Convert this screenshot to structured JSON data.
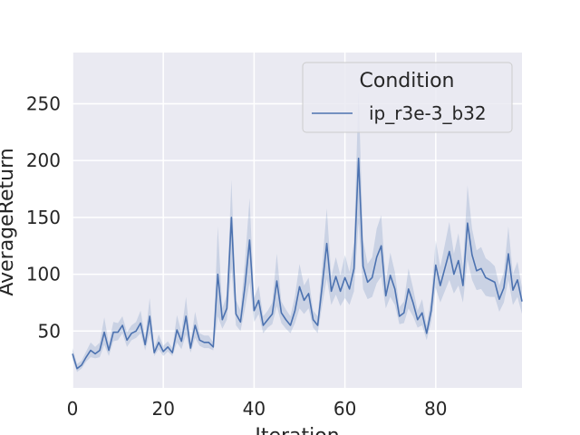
{
  "chart_data": {
    "type": "line",
    "xlabel": "Iteration",
    "ylabel": "AverageReturn",
    "xlim": [
      0,
      99
    ],
    "ylim": [
      0,
      295
    ],
    "xticks": [
      0,
      20,
      40,
      60,
      80
    ],
    "yticks": [
      50,
      100,
      150,
      200,
      250
    ],
    "grid": true,
    "legend": {
      "title": "Condition",
      "placement": "top-right"
    },
    "series": [
      {
        "name": "ip_r3e-3_b32",
        "color": "#4c72b0",
        "x": [
          0,
          1,
          2,
          3,
          4,
          5,
          6,
          7,
          8,
          9,
          10,
          11,
          12,
          13,
          14,
          15,
          16,
          17,
          18,
          19,
          20,
          21,
          22,
          23,
          24,
          25,
          26,
          27,
          28,
          29,
          30,
          31,
          32,
          33,
          34,
          35,
          36,
          37,
          38,
          39,
          40,
          41,
          42,
          43,
          44,
          45,
          46,
          47,
          48,
          49,
          50,
          51,
          52,
          53,
          54,
          55,
          56,
          57,
          58,
          59,
          60,
          61,
          62,
          63,
          64,
          65,
          66,
          67,
          68,
          69,
          70,
          71,
          72,
          73,
          74,
          75,
          76,
          77,
          78,
          79,
          80,
          81,
          82,
          83,
          84,
          85,
          86,
          87,
          88,
          89,
          90,
          91,
          92,
          93,
          94,
          95,
          96,
          97,
          98,
          99
        ],
        "y": [
          30,
          17,
          20,
          27,
          33,
          30,
          33,
          49,
          33,
          49,
          49,
          55,
          42,
          48,
          50,
          57,
          38,
          63,
          31,
          40,
          32,
          36,
          31,
          51,
          41,
          63,
          35,
          55,
          42,
          40,
          40,
          36,
          100,
          60,
          70,
          150,
          65,
          58,
          90,
          130,
          68,
          77,
          55,
          60,
          65,
          94,
          66,
          60,
          55,
          68,
          89,
          77,
          83,
          60,
          55,
          90,
          127,
          85,
          98,
          85,
          97,
          87,
          105,
          202,
          107,
          93,
          97,
          115,
          125,
          81,
          99,
          87,
          63,
          66,
          87,
          75,
          60,
          66,
          48,
          68,
          108,
          90,
          105,
          120,
          100,
          112,
          90,
          145,
          117,
          103,
          105,
          97,
          95,
          93,
          78,
          88,
          118,
          86,
          95,
          76
        ],
        "band_lower": [
          25,
          14,
          17,
          23,
          27,
          26,
          27,
          38,
          28,
          41,
          42,
          48,
          36,
          42,
          44,
          48,
          33,
          48,
          28,
          34,
          28,
          32,
          28,
          40,
          34,
          47,
          31,
          44,
          37,
          35,
          35,
          33,
          63,
          52,
          60,
          105,
          55,
          50,
          70,
          93,
          58,
          65,
          48,
          53,
          56,
          72,
          57,
          52,
          48,
          57,
          70,
          65,
          70,
          53,
          48,
          73,
          96,
          73,
          82,
          72,
          79,
          73,
          85,
          145,
          87,
          78,
          80,
          92,
          98,
          70,
          80,
          73,
          56,
          57,
          70,
          63,
          53,
          55,
          42,
          58,
          88,
          75,
          85,
          95,
          83,
          90,
          75,
          113,
          95,
          86,
          87,
          81,
          80,
          80,
          67,
          75,
          95,
          73,
          80,
          65
        ],
        "band_upper": [
          35,
          21,
          24,
          32,
          40,
          36,
          40,
          62,
          39,
          58,
          57,
          63,
          49,
          55,
          58,
          68,
          44,
          79,
          35,
          47,
          37,
          41,
          35,
          64,
          49,
          80,
          40,
          67,
          48,
          46,
          46,
          40,
          142,
          70,
          82,
          183,
          77,
          68,
          112,
          167,
          79,
          90,
          63,
          68,
          75,
          118,
          76,
          69,
          63,
          81,
          109,
          90,
          97,
          68,
          63,
          108,
          158,
          98,
          115,
          99,
          117,
          102,
          128,
          262,
          130,
          109,
          115,
          140,
          152,
          93,
          119,
          102,
          71,
          76,
          105,
          88,
          68,
          78,
          55,
          80,
          130,
          106,
          126,
          146,
          118,
          136,
          106,
          178,
          140,
          121,
          124,
          114,
          111,
          107,
          90,
          102,
          142,
          100,
          111,
          88
        ]
      }
    ]
  }
}
